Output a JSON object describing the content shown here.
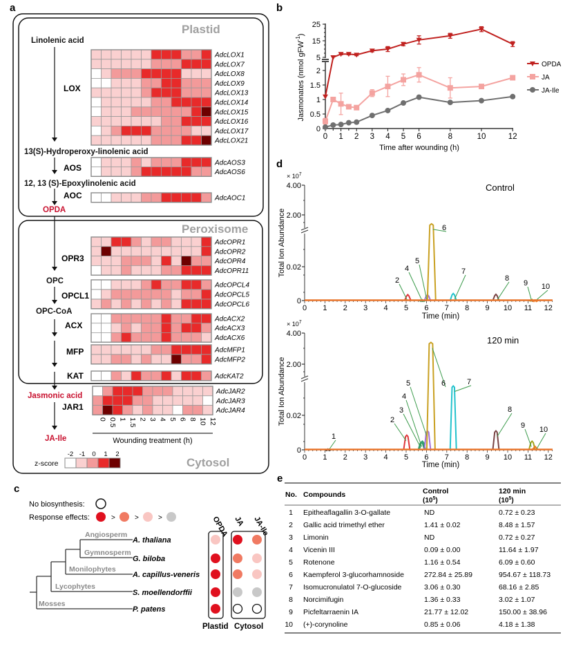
{
  "panel_labels": {
    "a": "a",
    "b": "b",
    "c": "c",
    "d": "d",
    "e": "e"
  },
  "panel_a": {
    "compartments": {
      "plastid": "Plastid",
      "peroxisome": "Peroxisome",
      "cytosol": "Cytosol"
    },
    "metabolites": [
      "Linolenic acid",
      "13(S)-Hydroperoxy-linolenic acid",
      "12, 13 (S)-Epoxylinolenic acid",
      "OPDA",
      "OPC",
      "OPC-CoA",
      "Jasmonic acid",
      "JA-Ile"
    ],
    "highlight_color": "#c8102e",
    "enzymes": [
      "LOX",
      "AOS",
      "AOC",
      "OPR3",
      "OPCL1",
      "ACX",
      "MFP",
      "KAT",
      "JAR1"
    ],
    "heatmap": {
      "columns": [
        "0",
        "0.5",
        "1",
        "1.5",
        "2",
        "3",
        "4",
        "5",
        "6",
        "8",
        "10",
        "12"
      ],
      "xlabel": "Wounding treatment (h)",
      "rows": [
        {
          "gene": "AdcLOX1",
          "z": [
            -1,
            -1,
            -1,
            -1,
            -1,
            -1,
            1,
            1,
            1,
            0,
            0,
            1
          ]
        },
        {
          "gene": "AdcLOX7",
          "z": [
            -1,
            -1,
            -1,
            -1,
            -1,
            -1,
            0,
            0,
            0,
            1,
            1,
            1
          ]
        },
        {
          "gene": "AdcLOX8",
          "z": [
            -2,
            -1,
            0,
            0,
            0,
            1,
            1,
            1,
            1,
            -1,
            -1,
            -1
          ]
        },
        {
          "gene": "AdcLOX9",
          "z": [
            -2,
            -2,
            -1,
            -1,
            -1,
            0,
            0,
            1,
            1,
            0,
            0,
            0
          ]
        },
        {
          "gene": "AdcLOX13",
          "z": [
            -1,
            -1,
            -1,
            -1,
            -1,
            0,
            1,
            1,
            1,
            0,
            0,
            0
          ]
        },
        {
          "gene": "AdcLOX14",
          "z": [
            -2,
            -1,
            -1,
            -1,
            -1,
            -1,
            0,
            0,
            1,
            1,
            1,
            1
          ]
        },
        {
          "gene": "AdcLOX15",
          "z": [
            -2,
            -1,
            -1,
            -1,
            0,
            0,
            0,
            0,
            0,
            0,
            1,
            2
          ]
        },
        {
          "gene": "AdcLOX16",
          "z": [
            -1,
            -1,
            -1,
            -1,
            -1,
            -1,
            -1,
            0,
            0,
            1,
            1,
            1
          ]
        },
        {
          "gene": "AdcLOX17",
          "z": [
            -2,
            -1,
            0,
            1,
            1,
            1,
            0,
            0,
            0,
            0,
            -1,
            -1
          ]
        },
        {
          "gene": "AdcLOX21",
          "z": [
            -1,
            -1,
            -1,
            -1,
            -1,
            -1,
            0,
            0,
            0,
            1,
            1,
            2
          ]
        },
        {
          "gene": "AdcAOS3",
          "z": [
            -2,
            -1,
            -1,
            -1,
            0,
            -1,
            0,
            0,
            0,
            1,
            1,
            1
          ]
        },
        {
          "gene": "AdcAOS6",
          "z": [
            -2,
            -1,
            -1,
            -1,
            0,
            1,
            1,
            1,
            1,
            1,
            0,
            0
          ]
        },
        {
          "gene": "AdcAOC1",
          "z": [
            -2,
            -2,
            -1,
            -1,
            -1,
            0,
            0,
            1,
            1,
            1,
            1,
            0
          ]
        },
        {
          "gene": "AdcOPR1",
          "z": [
            -1,
            -1,
            1,
            1,
            0,
            -1,
            0,
            0,
            -1,
            -1,
            -1,
            1
          ]
        },
        {
          "gene": "AdcOPR2",
          "z": [
            -1,
            2,
            -1,
            -1,
            -1,
            -1,
            -1,
            -1,
            -1,
            -1,
            -1,
            1
          ]
        },
        {
          "gene": "AdcOPR4",
          "z": [
            -1,
            -1,
            -1,
            0,
            0,
            0,
            -1,
            1,
            -1,
            2,
            0,
            0
          ]
        },
        {
          "gene": "AdcOPR11",
          "z": [
            -2,
            -1,
            -1,
            0,
            -1,
            -1,
            -1,
            0,
            0,
            1,
            1,
            1
          ]
        },
        {
          "gene": "AdcOPCL4",
          "z": [
            -2,
            -2,
            -1,
            -1,
            -1,
            0,
            1,
            0,
            0,
            1,
            1,
            0
          ]
        },
        {
          "gene": "AdcOPCL5",
          "z": [
            -2,
            -1,
            0,
            0,
            0,
            0,
            0,
            0,
            -1,
            0,
            0,
            1
          ]
        },
        {
          "gene": "AdcOPCL6",
          "z": [
            -1,
            0,
            -1,
            0,
            -1,
            0,
            -1,
            0,
            -1,
            1,
            1,
            1
          ]
        },
        {
          "gene": "AdcACX2",
          "z": [
            -2,
            -2,
            0,
            0,
            0,
            0,
            0,
            1,
            0,
            0,
            1,
            1
          ]
        },
        {
          "gene": "AdcACX3",
          "z": [
            -2,
            -2,
            -1,
            0,
            -1,
            0,
            0,
            1,
            0,
            1,
            1,
            0
          ]
        },
        {
          "gene": "AdcACX6",
          "z": [
            -2,
            -2,
            0,
            1,
            0,
            0,
            0,
            1,
            0,
            0,
            0,
            -1
          ]
        },
        {
          "gene": "AdcMFP1",
          "z": [
            -1,
            -1,
            -1,
            -1,
            -1,
            -1,
            0,
            0,
            1,
            1,
            1,
            1
          ]
        },
        {
          "gene": "AdcMFP2",
          "z": [
            -1,
            -1,
            0,
            0,
            -1,
            0,
            -1,
            -1,
            2,
            0,
            0,
            1
          ]
        },
        {
          "gene": "AdcKAT2",
          "z": [
            -2,
            -2,
            0,
            -1,
            1,
            0,
            0,
            1,
            -1,
            1,
            1,
            0
          ]
        },
        {
          "gene": "AdcJAR2",
          "z": [
            -2,
            0,
            1,
            1,
            1,
            0,
            0,
            0,
            -1,
            -1,
            -1,
            -1
          ]
        },
        {
          "gene": "AdcJAR3",
          "z": [
            0,
            1,
            1,
            1,
            0,
            0,
            -1,
            -1,
            -1,
            -1,
            -1,
            -2
          ]
        },
        {
          "gene": "AdcJAR4",
          "z": [
            0,
            2,
            1,
            0,
            -1,
            0,
            -1,
            -1,
            -2,
            0,
            0,
            -1
          ]
        }
      ]
    },
    "zscore_legend": {
      "label": "z-score",
      "ticks": [
        "-2",
        "-1",
        "0",
        "1",
        "2"
      ],
      "colors": [
        "#ffffff",
        "#fad0d0",
        "#f39a9a",
        "#e82a2a",
        "#6e0000"
      ]
    }
  },
  "chart_data": [
    {
      "type": "line",
      "panel": "b",
      "xlabel": "Time after wounding (h)",
      "ylabel": "Jasmonates (nmol gFW",
      "ylabel_superscript": "-1",
      "ylabel_close": ")",
      "x": [
        0,
        0.5,
        1,
        1.5,
        2,
        3,
        4,
        5,
        6,
        8,
        10,
        12
      ],
      "x_ticks": [
        "0",
        "1",
        "2",
        "3",
        "4",
        "5",
        "6",
        "8",
        "10",
        "12"
      ],
      "y_ticks_lower": [
        "0",
        "0.5",
        "1",
        "1.5",
        "2"
      ],
      "y_ticks_upper": [
        "5",
        "15",
        "25"
      ],
      "y_axis_break": [
        2.3,
        5
      ],
      "ylim": [
        0,
        25
      ],
      "legend_position": "right",
      "series": [
        {
          "name": "OPDA",
          "color": "#c0211f",
          "marker": "triangle-down",
          "values": [
            1.1,
            5,
            7,
            7,
            6.5,
            9,
            10,
            13,
            15.5,
            18,
            22,
            13
          ],
          "errors": [
            0,
            0,
            0.5,
            0.5,
            0.5,
            0.7,
            1.5,
            1,
            2.5,
            1.5,
            1.5,
            1.5
          ]
        },
        {
          "name": "JA",
          "color": "#f4a3a0",
          "marker": "square",
          "values": [
            0.25,
            1.0,
            0.85,
            0.75,
            0.72,
            1.22,
            1.45,
            1.68,
            1.85,
            1.4,
            1.45,
            1.75
          ],
          "errors": [
            0.1,
            0.05,
            0.37,
            0.05,
            0.05,
            0.12,
            0.35,
            0.2,
            0.25,
            0.35,
            0.05,
            0.05
          ]
        },
        {
          "name": "JA-Ile",
          "color": "#6f6f6f",
          "marker": "circle",
          "values": [
            0.05,
            0.12,
            0.14,
            0.2,
            0.22,
            0.45,
            0.62,
            0.88,
            1.08,
            0.9,
            0.96,
            1.1
          ],
          "errors": [
            0,
            0,
            0,
            0,
            0,
            0,
            0,
            0,
            0,
            0,
            0,
            0
          ]
        }
      ]
    },
    {
      "type": "line",
      "panel": "d",
      "subplots": [
        {
          "title": "Control",
          "peaks": [
            {
              "label": "2",
              "time": 5.08,
              "abundance": 0.0035
            },
            {
              "label": "4",
              "time": 5.8,
              "abundance": 0.0004
            },
            {
              "label": "5",
              "time": 6.05,
              "abundance": 0.0035
            },
            {
              "label": "6",
              "time": 6.25,
              "abundance": 1.4
            },
            {
              "label": "7",
              "time": 7.32,
              "abundance": 0.0042
            },
            {
              "label": "8",
              "time": 9.42,
              "abundance": 0.0037
            },
            {
              "label": "9",
              "time": 11.2,
              "abundance": 0.0006
            },
            {
              "label": "10",
              "time": 11.35,
              "abundance": 0.0003
            }
          ]
        },
        {
          "title": "120 min",
          "peaks": [
            {
              "label": "1",
              "time": 1.15,
              "abundance": 0.0004
            },
            {
              "label": "2",
              "time": 5.03,
              "abundance": 0.0085
            },
            {
              "label": "3",
              "time": 5.75,
              "abundance": 0.0045
            },
            {
              "label": "4",
              "time": 5.8,
              "abundance": 0.005
            },
            {
              "label": "5",
              "time": 6.05,
              "abundance": 0.011
            },
            {
              "label": "6",
              "time": 6.22,
              "abundance": 3.4
            },
            {
              "label": "7",
              "time": 7.32,
              "abundance": 0.037
            },
            {
              "label": "8",
              "time": 9.42,
              "abundance": 0.011
            },
            {
              "label": "9",
              "time": 11.2,
              "abundance": 0.005
            },
            {
              "label": "10",
              "time": 11.35,
              "abundance": 0.002
            }
          ]
        }
      ],
      "peak_colors": {
        "1": "#333333",
        "2": "#e0353a",
        "3": "#2e9a6a",
        "4": "#36a06e",
        "5": "#a46fd6",
        "6": "#c9a021",
        "7": "#22c2cc",
        "8": "#7a4444",
        "9": "#a3a21c",
        "10": "#ee7a22"
      },
      "baseline_color": "#e8742a",
      "xlabel": "Time (min)",
      "ylabel": "Total Ion Abundance",
      "y_multiplier": "× 10",
      "y_multiplier_exp": "7",
      "x_ticks": [
        "0",
        "1",
        "2",
        "3",
        "4",
        "5",
        "6",
        "7",
        "8",
        "9",
        "10",
        "11",
        "12"
      ],
      "y_ticks": [
        "0",
        "0.02",
        "2.00",
        "4.00"
      ],
      "xlim": [
        0,
        12.2
      ]
    }
  ],
  "panel_c": {
    "legend": {
      "no_biosynthesis": "No biosynthesis:",
      "response_effects": "Response effects:",
      "gt": ">"
    },
    "effect_colors": {
      "strong": "#e0101e",
      "medium": "#f07a62",
      "weak": "#f9c6c2",
      "none": "#c8c8c8"
    },
    "clades": [
      "Angiosperm",
      "Gymnosperm",
      "Monilophytes",
      "Lycophytes",
      "Mosses"
    ],
    "columns": [
      "OPDA",
      "JA",
      "JA-Ile"
    ],
    "compartments": [
      "Plastid",
      "Cytosol"
    ],
    "species": [
      {
        "name": "A. thaliana",
        "OPDA": "weak",
        "JA": "strong",
        "JA-Ile": "medium"
      },
      {
        "name": "G. biloba",
        "OPDA": "strong",
        "JA": "medium",
        "JA-Ile": "weak"
      },
      {
        "name": "A. capillus-veneris",
        "OPDA": "strong",
        "JA": "medium",
        "JA-Ile": "weak"
      },
      {
        "name": "S. moellendorffii",
        "OPDA": "strong",
        "JA": "none",
        "JA-Ile": "none"
      },
      {
        "name": "P. patens",
        "OPDA": "strong",
        "JA": "no-biosynthesis",
        "JA-Ile": "no-biosynthesis"
      }
    ]
  },
  "panel_e": {
    "headers": {
      "no": "No.",
      "compounds": "Compounds",
      "control": "Control",
      "control_unit": "(10",
      "t120": "120 min",
      "t120_unit": "(10",
      "unit_exp": "5",
      "unit_close": ")"
    },
    "rows": [
      {
        "no": "1",
        "compound": "Epitheaflagallin 3-O-gallate",
        "control": "ND",
        "t120": "0.72 ± 0.23"
      },
      {
        "no": "2",
        "compound": "Gallic acid trimethyl ether",
        "control": "1.41 ± 0.02",
        "t120": "8.48 ± 1.57"
      },
      {
        "no": "3",
        "compound": "Limonin",
        "control": "ND",
        "t120": "0.72 ± 0.27"
      },
      {
        "no": "4",
        "compound": "Vicenin III",
        "control": "0.09 ± 0.00",
        "t120": "11.64 ± 1.97"
      },
      {
        "no": "5",
        "compound": "Rotenone",
        "control": "1.16 ± 0.54",
        "t120": "6.09 ± 0.60"
      },
      {
        "no": "6",
        "compound": "Kaempferol 3-glucorhamnoside",
        "control": "272.84 ± 25.89",
        "t120": "954.67 ± 118.73"
      },
      {
        "no": "7",
        "compound": "Isomucronulatol 7-O-glucoside",
        "control": "3.06 ± 0.30",
        "t120": "68.16 ± 2.85"
      },
      {
        "no": "8",
        "compound": "Norcimifugin",
        "control": "1.36 ± 0.33",
        "t120": "3.02 ± 1.07"
      },
      {
        "no": "9",
        "compound": "Picfeltarraenin IA",
        "control": "21.77 ± 12.02",
        "t120": "150.00 ± 38.96"
      },
      {
        "no": "10",
        "compound": "(+)-corynoline",
        "control": "0.85 ± 0.06",
        "t120": "4.18 ± 1.38"
      }
    ]
  }
}
